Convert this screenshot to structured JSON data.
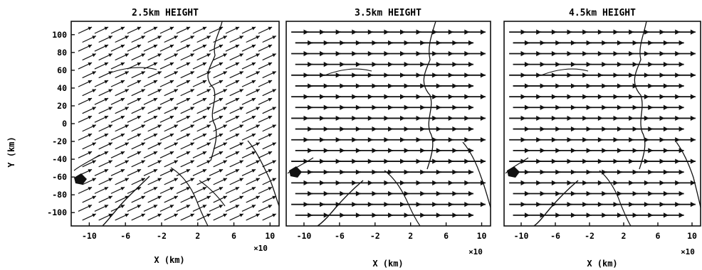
{
  "chart_data": [
    {
      "type": "vector",
      "title": "2.5km HEIGHT",
      "xlabel": "X (km)",
      "ylabel": "Y (km)",
      "x_multiplier_label": "×10",
      "xticks": [
        -10,
        -6,
        -2,
        2,
        6,
        10
      ],
      "yticks": [
        100,
        80,
        60,
        40,
        20,
        0,
        -20,
        -40,
        -60,
        -80,
        -100
      ],
      "xlim": [
        -12,
        11
      ],
      "ylim": [
        -115,
        115
      ],
      "wind_direction_deg_from_east": 25,
      "grid_rows": 22,
      "arrows_per_row": 12
    },
    {
      "type": "vector",
      "title": "3.5km HEIGHT",
      "xlabel": "X (km)",
      "x_multiplier_label": "×10",
      "xticks": [
        -10,
        -6,
        -2,
        2,
        6,
        10
      ],
      "xlim": [
        -12,
        11
      ],
      "ylim": [
        -115,
        115
      ],
      "wind_direction_deg_from_east": 0,
      "grid_rows": 18,
      "arrows_per_row": 12
    },
    {
      "type": "vector",
      "title": "4.5km HEIGHT",
      "xlabel": "X (km)",
      "x_multiplier_label": "×10",
      "xticks": [
        -10,
        -6,
        -2,
        2,
        6,
        10
      ],
      "xlim": [
        -12,
        11
      ],
      "ylim": [
        -115,
        115
      ],
      "wind_direction_deg_from_east": 0,
      "grid_rows": 18,
      "arrows_per_row": 12
    }
  ]
}
